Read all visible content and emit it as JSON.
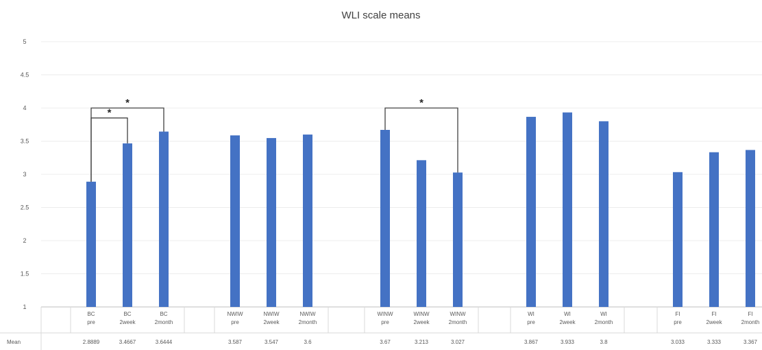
{
  "chart_data": {
    "type": "bar",
    "title": "WLI scale means",
    "ylim": [
      1,
      5
    ],
    "yticks": [
      "1",
      "1.5",
      "2",
      "2.5",
      "3",
      "3.5",
      "4",
      "4.5",
      "5"
    ],
    "grid": true,
    "bar_color": "#4472c4",
    "table_row_label": "Mean",
    "groups": [
      {
        "bars": [
          {
            "line1": "BC",
            "line2": "pre",
            "value": 2.8889,
            "label": "2.8889"
          },
          {
            "line1": "BC",
            "line2": "2week",
            "value": 3.4667,
            "label": "3.4667"
          },
          {
            "line1": "BC",
            "line2": "2month",
            "value": 3.6444,
            "label": "3.6444"
          }
        ]
      },
      {
        "bars": [
          {
            "line1": "NWIW",
            "line2": "pre",
            "value": 3.587,
            "label": "3.587"
          },
          {
            "line1": "NWIW",
            "line2": "2week",
            "value": 3.547,
            "label": "3.547"
          },
          {
            "line1": "NWIW",
            "line2": "2month",
            "value": 3.6,
            "label": "3.6"
          }
        ]
      },
      {
        "bars": [
          {
            "line1": "WINW",
            "line2": "pre",
            "value": 3.67,
            "label": "3.67"
          },
          {
            "line1": "WINW",
            "line2": "2week",
            "value": 3.213,
            "label": "3.213"
          },
          {
            "line1": "WINW",
            "line2": "2month",
            "value": 3.027,
            "label": "3.027"
          }
        ]
      },
      {
        "bars": [
          {
            "line1": "WI",
            "line2": "pre",
            "value": 3.867,
            "label": "3.867"
          },
          {
            "line1": "WI",
            "line2": "2week",
            "value": 3.933,
            "label": "3.933"
          },
          {
            "line1": "WI",
            "line2": "2month",
            "value": 3.8,
            "label": "3.8"
          }
        ]
      },
      {
        "bars": [
          {
            "line1": "FI",
            "line2": "pre",
            "value": 3.033,
            "label": "3.033"
          },
          {
            "line1": "FI",
            "line2": "2week",
            "value": 3.333,
            "label": "3.333"
          },
          {
            "line1": "FI",
            "line2": "2month",
            "value": 3.367,
            "label": "3.367"
          }
        ]
      }
    ],
    "significance": [
      {
        "group": 0,
        "from": 0,
        "to": 1,
        "level": 3.85,
        "label": "*"
      },
      {
        "group": 0,
        "from": 0,
        "to": 2,
        "level": 4.0,
        "label": "*"
      },
      {
        "group": 2,
        "from": 0,
        "to": 2,
        "level": 4.0,
        "label": "*"
      }
    ]
  }
}
